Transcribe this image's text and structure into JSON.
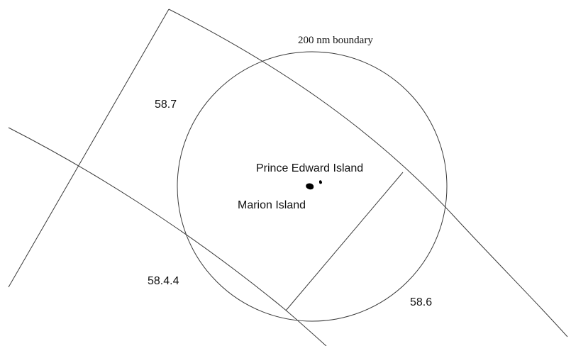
{
  "labels": {
    "boundary": "200 nm boundary",
    "area_58_7": "58.7",
    "area_58_4_4": "58.4.4",
    "area_58_6": "58.6",
    "prince_edward": "Prince Edward Island",
    "marion": "Marion Island"
  },
  "colors": {
    "line": "#3a3a3a",
    "land": "#000000",
    "background": "#ffffff"
  }
}
